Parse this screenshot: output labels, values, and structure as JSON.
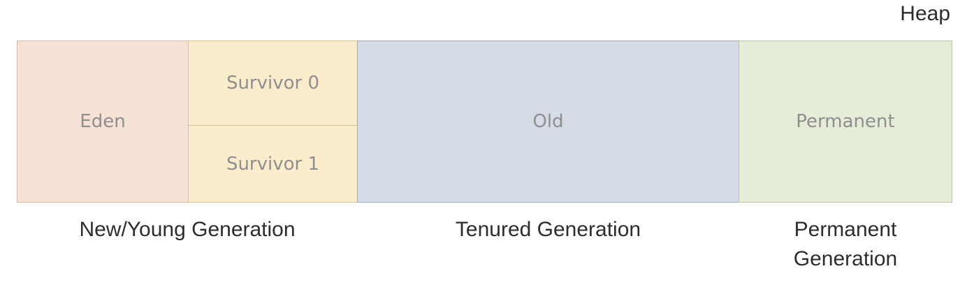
{
  "heap": {
    "label": "Heap"
  },
  "regions": {
    "eden": "Eden",
    "survivor0": "Survivor 0",
    "survivor1": "Survivor 1",
    "old": "Old",
    "permanent": "Permanent"
  },
  "generations": {
    "young": "New/Young Generation",
    "tenured": "Tenured Generation",
    "permanent_line1": "Permanent",
    "permanent_line2": "Generation"
  },
  "colors": {
    "eden": "#f5e1d5",
    "survivor": "#fbeccc",
    "old": "#d6dce6",
    "permanent": "#e5edd8"
  }
}
